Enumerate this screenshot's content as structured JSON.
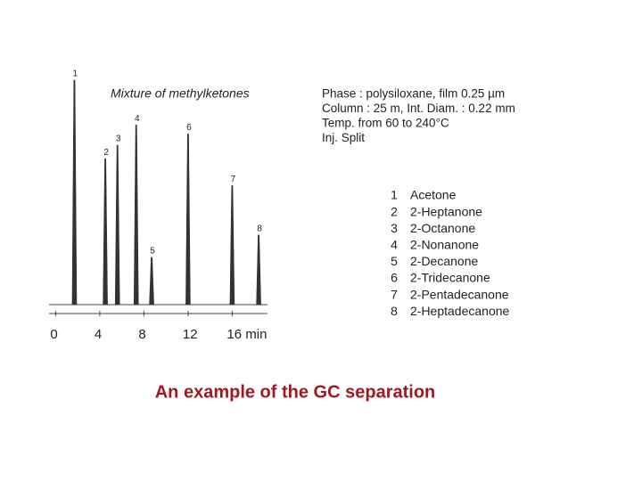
{
  "chart_data": {
    "type": "chromatogram",
    "title": "Mixture of methylketones",
    "x": [
      1.7,
      4.5,
      5.6,
      7.3,
      8.7,
      12.0,
      16.0,
      18.4
    ],
    "heights": [
      100,
      65,
      71,
      80,
      21,
      76,
      53,
      31
    ],
    "peak_labels": [
      "1",
      "2",
      "3",
      "4",
      "5",
      "6",
      "7",
      "8"
    ],
    "xlim": [
      -0.6,
      19.2
    ],
    "ylim": [
      0,
      100
    ],
    "xticks": [
      0,
      4,
      8,
      12,
      {
        "value": 16,
        "label": "16 min"
      }
    ],
    "conditions": [
      "Phase : polysiloxane, film 0.25 µm",
      "Column : 25 m, Int. Diam. : 0.22 mm",
      "Temp. from 60 to 240°C",
      "Inj. Split"
    ],
    "compounds": [
      {
        "number": "1",
        "name": "Acetone"
      },
      {
        "number": "2",
        "name": "2-Heptanone"
      },
      {
        "number": "3",
        "name": "2-Octanone"
      },
      {
        "number": "4",
        "name": "2-Nonanone"
      },
      {
        "number": "5",
        "name": "2-Decanone"
      },
      {
        "number": "6",
        "name": "2-Tridecanone"
      },
      {
        "number": "7",
        "name": "2-Pentadecanone"
      },
      {
        "number": "8",
        "name": "2-Heptadecanone"
      }
    ],
    "caption": "An example of the GC separation",
    "caption_color": "#a01820"
  }
}
